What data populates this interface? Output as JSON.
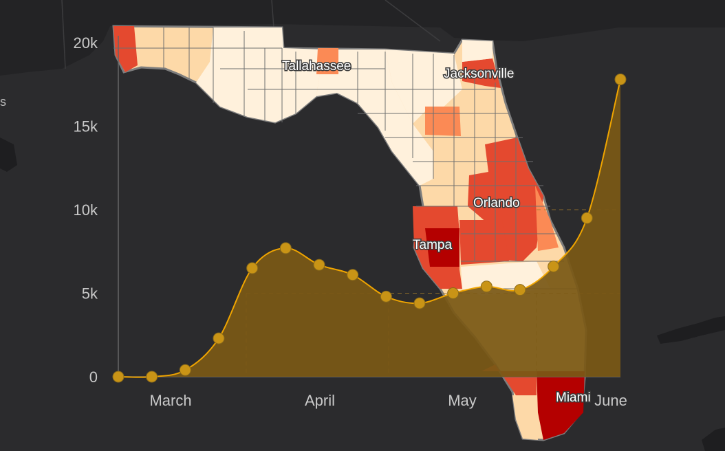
{
  "map": {
    "cities": [
      "Tallahassee",
      "Jacksonville",
      "Orlando",
      "Tampa",
      "Miami"
    ],
    "edge_fragment": "s",
    "colors": {
      "background": "#2b2b2d",
      "land_dark": "#232325",
      "water": "#2b2b2d",
      "county_border": "#8a8a8a",
      "lowest": "#fff1dc",
      "low": "#fdd9a8",
      "mid": "#fb8a55",
      "high": "#e4492f",
      "highest": "#b40000"
    }
  },
  "chart_data": {
    "type": "area",
    "title": "",
    "xlabel": "",
    "ylabel": "",
    "x_tick_labels": [
      "March",
      "April",
      "May",
      "June"
    ],
    "y_tick_labels": [
      "0",
      "5k",
      "10k",
      "15k",
      "20k"
    ],
    "y_ticks": [
      0,
      5000,
      10000,
      15000,
      20000
    ],
    "ylim": [
      0,
      20000
    ],
    "grid": false,
    "legend": "none",
    "series": [
      {
        "values": [
          0,
          0,
          400,
          2300,
          6500,
          7700,
          6700,
          6100,
          4800,
          4400,
          5000,
          5400,
          5200,
          6600,
          9500,
          17800
        ]
      }
    ],
    "colors": {
      "line": "#f0a500",
      "area": "#7a5816",
      "marker": "#c99416"
    }
  }
}
